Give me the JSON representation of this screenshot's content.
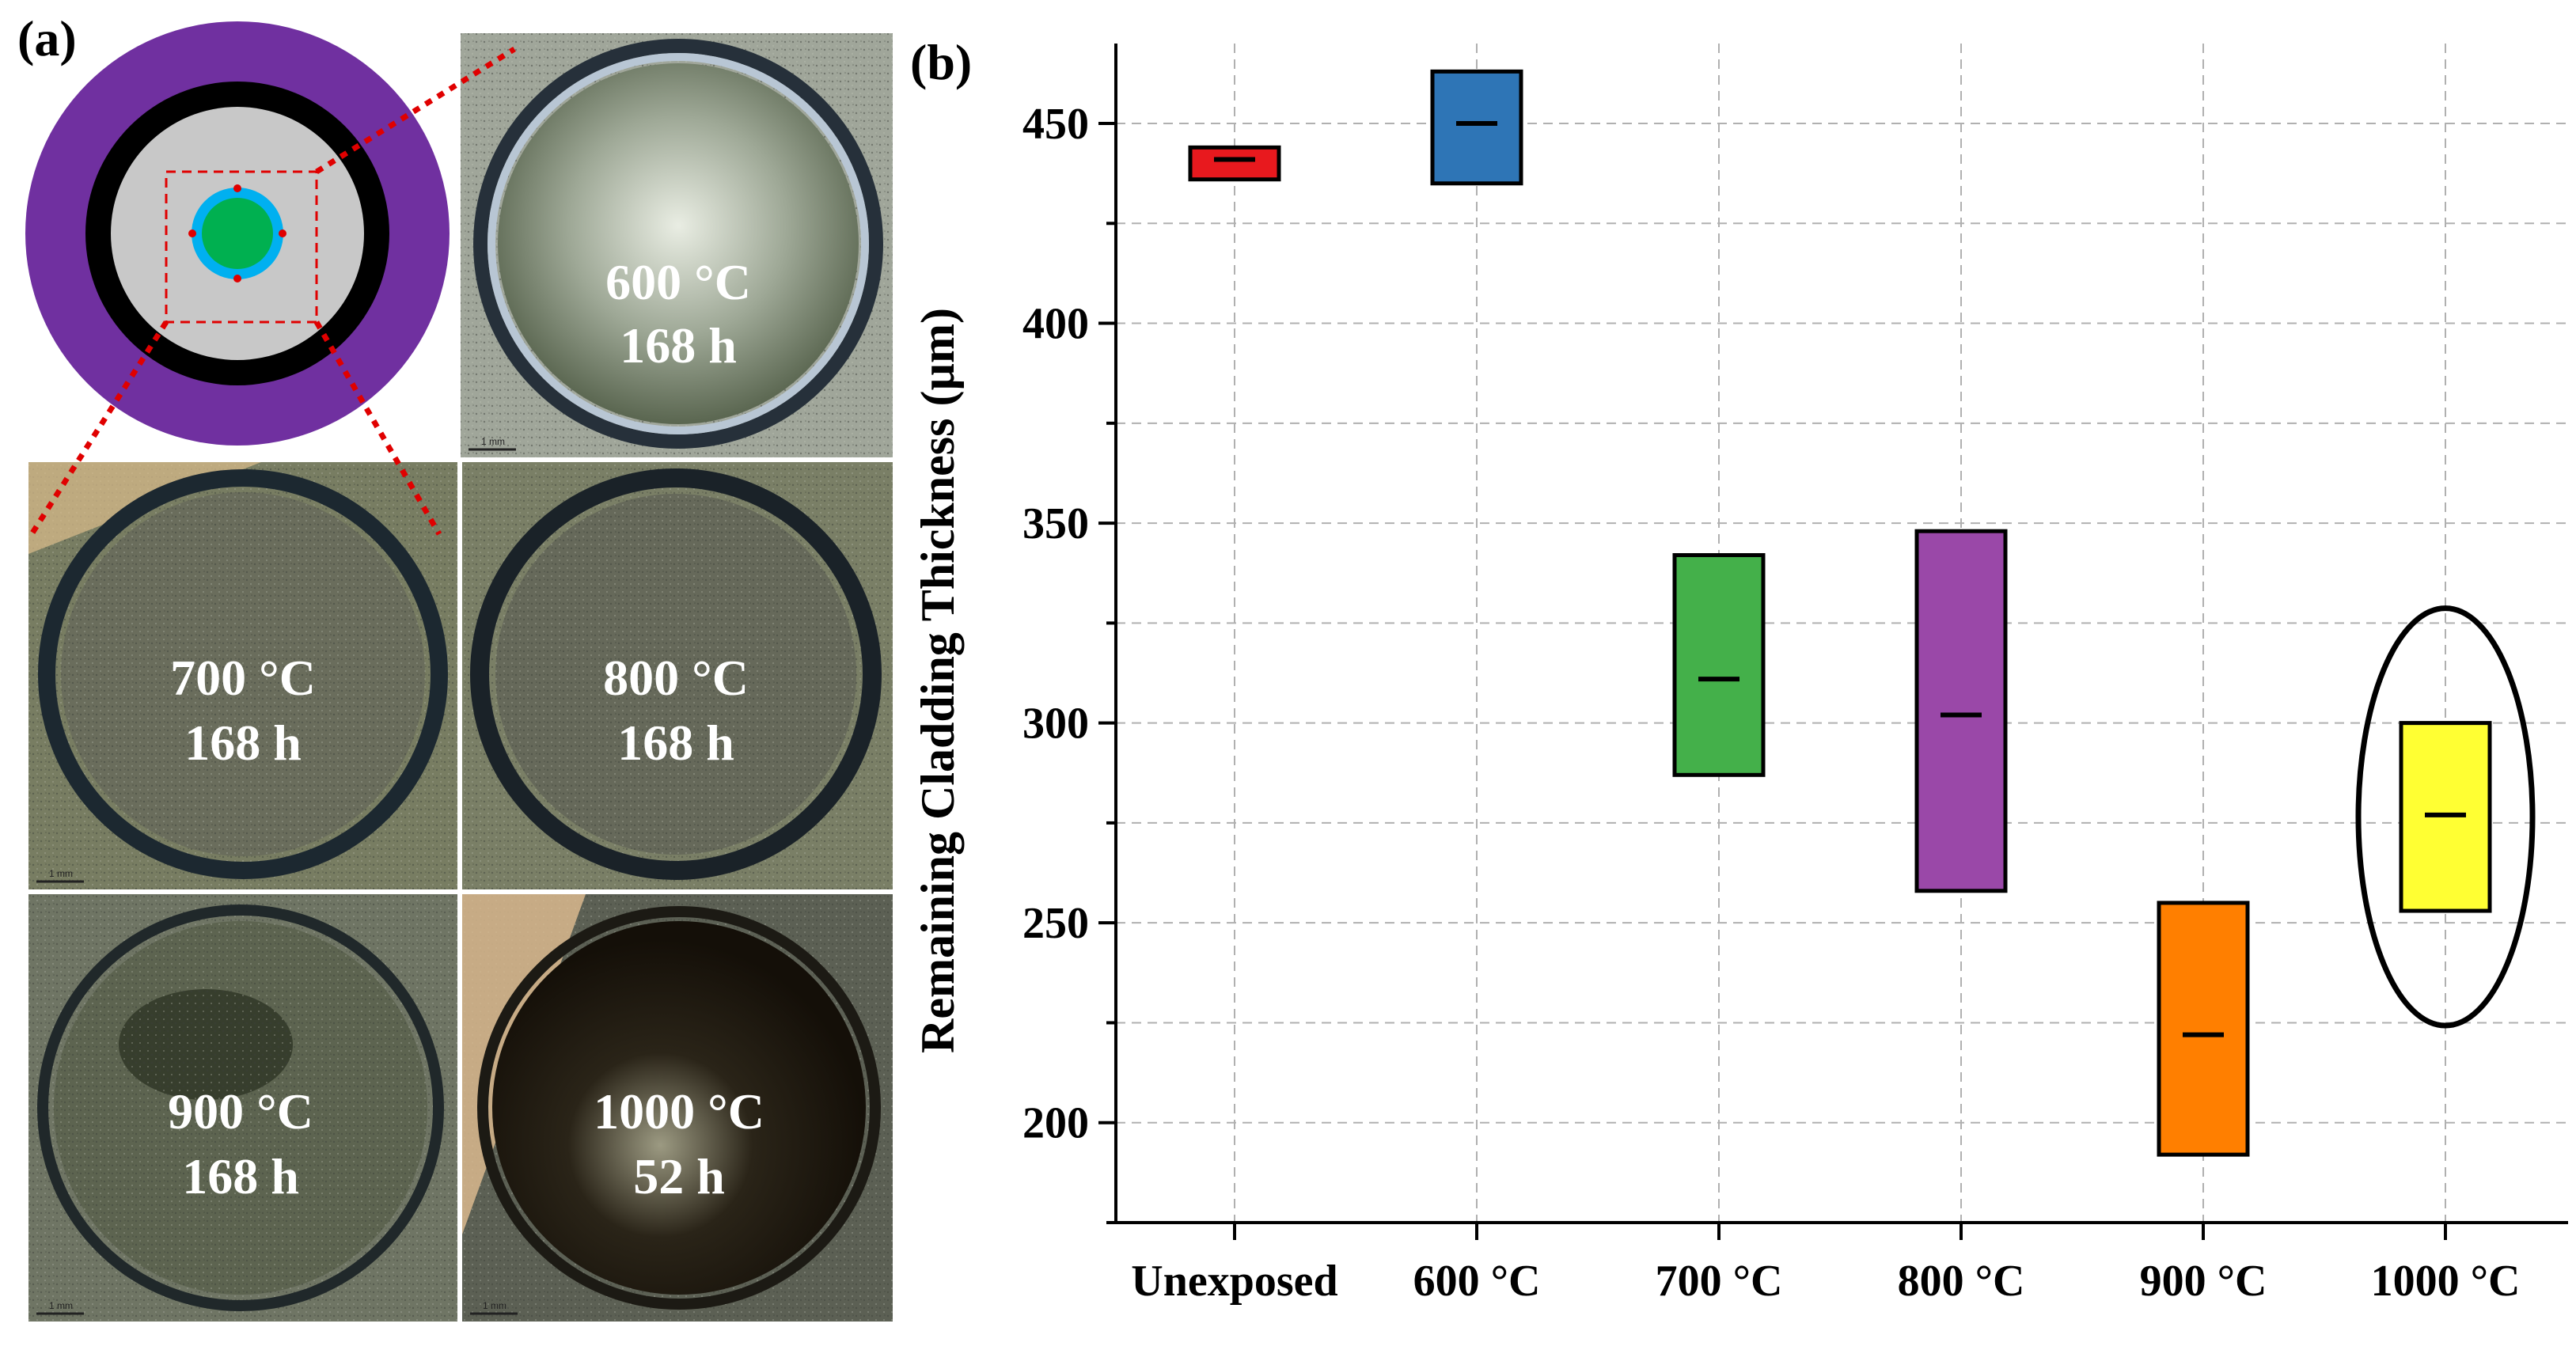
{
  "panel_a": {
    "label": "(a)",
    "photos": [
      {
        "temp": "600 °C",
        "time": "168 h"
      },
      {
        "temp": "700 °C",
        "time": "168 h"
      },
      {
        "temp": "800 °C",
        "time": "168 h"
      },
      {
        "temp": "900 °C",
        "time": "168 h"
      },
      {
        "temp": "1000 °C",
        "time": "52 h"
      }
    ],
    "scale_bar": "1 mm"
  },
  "chart_data": {
    "type": "box",
    "panel_label": "(b)",
    "title": "",
    "xlabel": "",
    "ylabel": "Remaining Cladding Thickness (µm)",
    "ylim": [
      175,
      470
    ],
    "yticks": [
      200,
      250,
      300,
      350,
      400,
      450
    ],
    "grid": true,
    "categories": [
      "Unexposed",
      "600 °C",
      "700 °C",
      "800 °C",
      "900 °C",
      "1000 °C"
    ],
    "boxes": [
      {
        "min": 436,
        "max": 444,
        "median": 441,
        "color": "#e8191e"
      },
      {
        "min": 435,
        "max": 463,
        "median": 450,
        "color": "#2e75b6"
      },
      {
        "min": 287,
        "max": 342,
        "median": 311,
        "color": "#44b04a"
      },
      {
        "min": 258,
        "max": 348,
        "median": 302,
        "color": "#9a48a8"
      },
      {
        "min": 192,
        "max": 255,
        "median": 222,
        "color": "#ff7f00"
      },
      {
        "min": 253,
        "max": 300,
        "median": 277,
        "color": "#ffff33"
      }
    ],
    "highlight": "1000 °C"
  }
}
